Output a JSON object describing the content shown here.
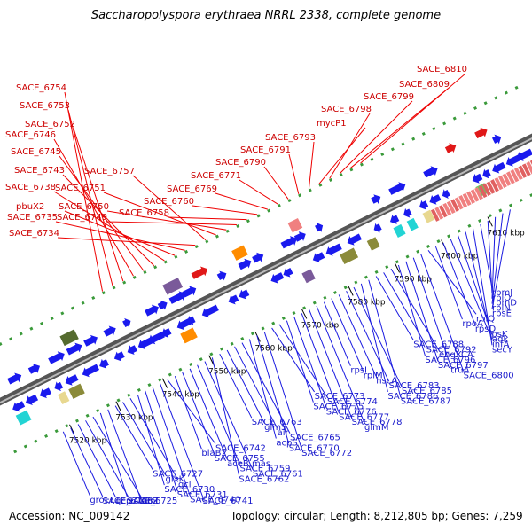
{
  "title": "Saccharopolyspora erythraea NRRL 2338, complete genome",
  "footer": {
    "accession": "Accession: NC_009142",
    "summary": "Topology: circular; Length: 8,212,805 bp; Genes: 7,259"
  },
  "ruler_labels": [
    "7520 kbp",
    "7530 kbp",
    "7540 kbp",
    "7550 kbp",
    "7560 kbp",
    "7570 kbp",
    "7580 kbp",
    "7590 kbp",
    "7600 kbp",
    "7610 kbp",
    "7620 kbp",
    "7630 kbp"
  ],
  "top_labels": [
    "SACE_6754",
    "SACE_6753",
    "SACE_6752",
    "SACE_6746",
    "SACE_6745",
    "SACE_6743",
    "SACE_6738",
    "pbuX2",
    "SACE_6735",
    "SACE_6734",
    "SACE_6757",
    "SACE_6751",
    "SACE_6750",
    "SACE_6749",
    "SACE_6758",
    "SACE_6760",
    "SACE_6769",
    "SACE_6771",
    "SACE_6790",
    "SACE_6791",
    "SACE_6793",
    "mycP1",
    "SACE_6798",
    "SACE_6799",
    "SACE_6809",
    "SACE_6810"
  ],
  "bottom_labels": [
    "groEL1",
    "SACE_6718",
    "gcp",
    "estC",
    "riml",
    "SACE_6725",
    "lacZ",
    "SACE_6727",
    "glxK",
    "gcl",
    "SACE_6730",
    "SACE_6731",
    "SACE_6740",
    "SACE_6741",
    "SACE_6742",
    "blaB2",
    "SACE_6755",
    "aceB,mas",
    "SACE_6759",
    "SACE_6761",
    "SACE_6762",
    "SACE_6763",
    "glmS",
    "air",
    "SACE_6765",
    "acpS",
    "SACE_6770",
    "SACE_6772",
    "SACE_6773",
    "SACE_6774",
    "SACE_6775",
    "SACE_6776",
    "SACE_6777",
    "SACE_6778",
    "glmM",
    "rpsI",
    "rplM",
    "hscA",
    "SACE_6783",
    "SACE_6785",
    "SACE_6786",
    "SACE_6787",
    "SACE_6788",
    "SACE_6792",
    "engXCA",
    "SACE_6796",
    "SACE_6797",
    "truA",
    "SACE_6800",
    "rplQ",
    "rpoA",
    "rpsD",
    "rpsK",
    "adk",
    "infA",
    "secY",
    "rpmJ",
    "rplO",
    "rpmD",
    "rplN",
    "rpsE"
  ]
}
